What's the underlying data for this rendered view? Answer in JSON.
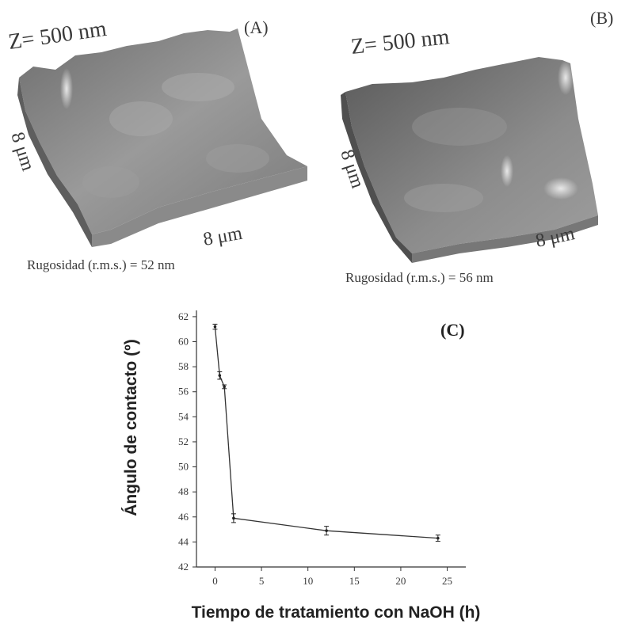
{
  "panels": {
    "A": {
      "label": "(A)",
      "z_scale": "Z= 500 nm",
      "x_dim": "8 μm",
      "y_dim": "8 μm",
      "roughness": "Rugosidad (r.m.s.) = 52 nm"
    },
    "B": {
      "label": "(B)",
      "z_scale": "Z= 500 nm",
      "x_dim": "8 μm",
      "y_dim": "8 μm",
      "roughness": "Rugosidad (r.m.s.) = 56 nm"
    },
    "C": {
      "label": "(C)"
    }
  },
  "chart_data": {
    "type": "line",
    "title": "",
    "xlabel": "Tiempo de tratamiento con NaOH (h)",
    "ylabel": "Ángulo de contacto (º)",
    "xlim": [
      -2,
      27
    ],
    "ylim": [
      42,
      62.5
    ],
    "xticks": [
      0,
      5,
      10,
      15,
      20,
      25
    ],
    "yticks": [
      42,
      44,
      46,
      48,
      50,
      52,
      54,
      56,
      58,
      60,
      62
    ],
    "series": [
      {
        "x": [
          0,
          0.5,
          1,
          2,
          12,
          24
        ],
        "y": [
          61.2,
          57.3,
          56.4,
          45.9,
          44.9,
          44.3
        ],
        "err": [
          0.2,
          0.3,
          0.15,
          0.35,
          0.35,
          0.25
        ]
      }
    ],
    "grid": false,
    "legend": "none"
  }
}
